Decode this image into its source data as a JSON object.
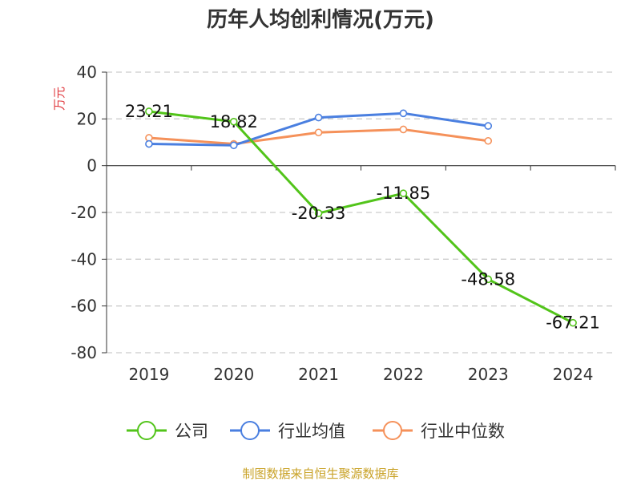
{
  "colors": {
    "company": "#52c41a",
    "industry_avg": "#4a7fe0",
    "industry_median": "#f5915a",
    "ylabel": "#e0393e",
    "source": "#c9a227",
    "grid": "#cccccc",
    "axis": "#333333"
  },
  "chart_data": {
    "type": "line",
    "title": "历年人均创利情况(万元)",
    "ylabel": "万元",
    "xlabel": "",
    "categories": [
      "2019",
      "2020",
      "2021",
      "2022",
      "2023",
      "2024"
    ],
    "ylim": [
      -80,
      40
    ],
    "yticks": [
      40,
      20,
      0,
      -20,
      -40,
      -60,
      -80
    ],
    "grid": true,
    "legend_position": "bottom",
    "series": [
      {
        "key": "company",
        "name": "公司",
        "values": [
          23.21,
          18.82,
          -20.33,
          -11.85,
          -48.58,
          -67.21
        ],
        "show_labels": true
      },
      {
        "key": "industry_avg",
        "name": "行业均值",
        "values": [
          9.3,
          8.7,
          20.6,
          22.4,
          17.0,
          null
        ],
        "show_labels": false
      },
      {
        "key": "industry_median",
        "name": "行业中位数",
        "values": [
          11.9,
          9.3,
          14.2,
          15.5,
          10.6,
          null
        ],
        "show_labels": false
      }
    ],
    "data_labels": [
      "23.21",
      "18.82",
      "-20.33",
      "-11.85",
      "-48.58",
      "-67.21"
    ]
  },
  "source_text": "制图数据来自恒生聚源数据库"
}
